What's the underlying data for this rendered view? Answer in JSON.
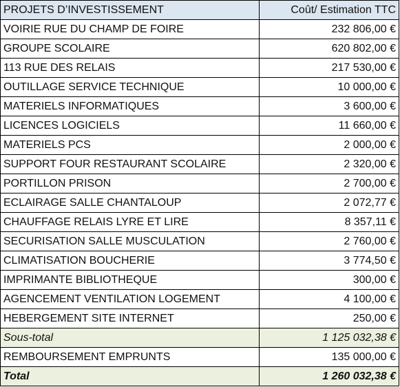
{
  "table": {
    "header": [
      "PROJETS D’INVESTISSEMENT",
      "Coût/ Estimation TTC"
    ],
    "rows": [
      [
        "VOIRIE RUE DU CHAMP DE FOIRE",
        "232 806,00 €"
      ],
      [
        "GROUPE SCOLAIRE",
        "620 802,00 €"
      ],
      [
        "113 RUE DES RELAIS",
        "217 530,00 €"
      ],
      [
        "OUTILLAGE SERVICE TECHNIQUE",
        "10 000,00 €"
      ],
      [
        "MATERIELS INFORMATIQUES",
        "3 600,00 €"
      ],
      [
        "LICENCES LOGICIELS",
        "11 660,00 €"
      ],
      [
        "MATERIELS PCS",
        "2 000,00 €"
      ],
      [
        "SUPPORT FOUR RESTAURANT SCOLAIRE",
        "2 320,00 €"
      ],
      [
        "PORTILLON PRISON",
        "2 700,00 €"
      ],
      [
        "ECLAIRAGE SALLE CHANTALOUP",
        "2 072,77 €"
      ],
      [
        "CHAUFFAGE RELAIS LYRE ET LIRE",
        "8 357,11 €"
      ],
      [
        "SECURISATION SALLE MUSCULATION",
        "2 760,00 €"
      ],
      [
        "CLIMATISATION BOUCHERIE",
        "3 774,50 €"
      ],
      [
        "IMPRIMANTE BIBLIOTHEQUE",
        "300,00 €"
      ],
      [
        "AGENCEMENT VENTILATION LOGEMENT",
        "4 100,00 €"
      ],
      [
        "HEBERGEMENT SITE INTERNET",
        "250,00 €"
      ],
      [
        "Sous-total",
        "1 125 032,38 €"
      ],
      [
        "REMBOURSEMENT EMPRUNTS",
        "135 000,00 €"
      ],
      [
        "Total",
        "1 260 032,38 €"
      ]
    ]
  }
}
